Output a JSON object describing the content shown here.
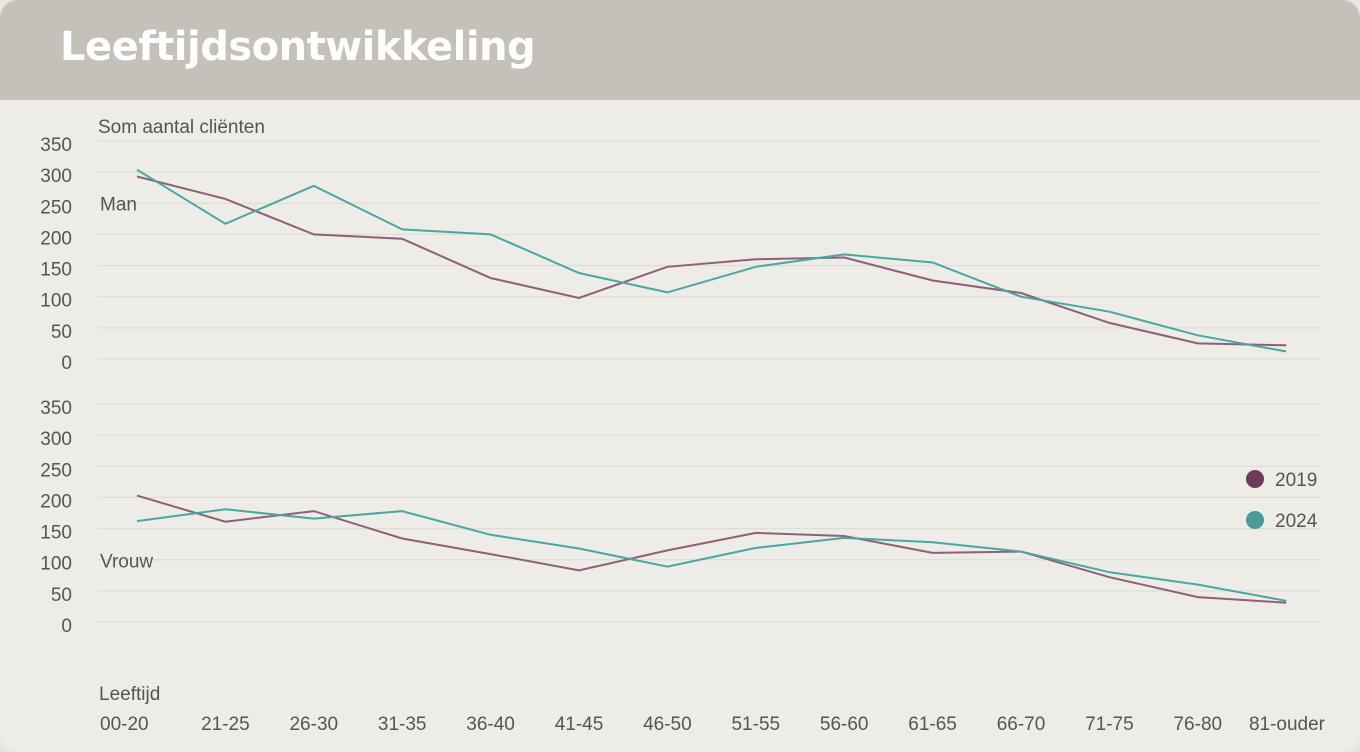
{
  "title": "Leeftijdsontwikkeling",
  "chart_data": {
    "type": "line",
    "ylabel": "Som aantal cliënten",
    "xlabel": "Leeftijd",
    "categories": [
      "00-20",
      "21-25",
      "26-30",
      "31-35",
      "36-40",
      "41-45",
      "46-50",
      "51-55",
      "56-60",
      "61-65",
      "66-70",
      "71-75",
      "76-80",
      "81-ouder"
    ],
    "ylim": [
      0,
      350
    ],
    "yticks": [
      0,
      50,
      100,
      150,
      200,
      250,
      300,
      350
    ],
    "grid": true,
    "legend": {
      "position": "right",
      "items": [
        {
          "name": "2019",
          "color": "#6e3b5c"
        },
        {
          "name": "2024",
          "color": "#4a9c98"
        }
      ]
    },
    "panels": [
      {
        "label": "Man",
        "series": [
          {
            "name": "2019",
            "color": "#8f5f79",
            "values": [
              293,
              257,
              200,
              193,
              130,
              98,
              148,
              160,
              163,
              126,
              106,
              58,
              25,
              22
            ]
          },
          {
            "name": "2024",
            "color": "#4aa6a2",
            "values": [
              304,
              217,
              278,
              208,
              200,
              138,
              107,
              148,
              168,
              155,
              100,
              76,
              38,
              12
            ]
          }
        ]
      },
      {
        "label": "Vrouw",
        "series": [
          {
            "name": "2019",
            "color": "#8f5f79",
            "values": [
              203,
              161,
              178,
              134,
              109,
              83,
              115,
              143,
              138,
              111,
              113,
              72,
              40,
              31
            ]
          },
          {
            "name": "2024",
            "color": "#4aa6a2",
            "values": [
              162,
              181,
              166,
              178,
              140,
              118,
              89,
              119,
              135,
              128,
              113,
              80,
              60,
              34
            ]
          }
        ]
      }
    ]
  }
}
